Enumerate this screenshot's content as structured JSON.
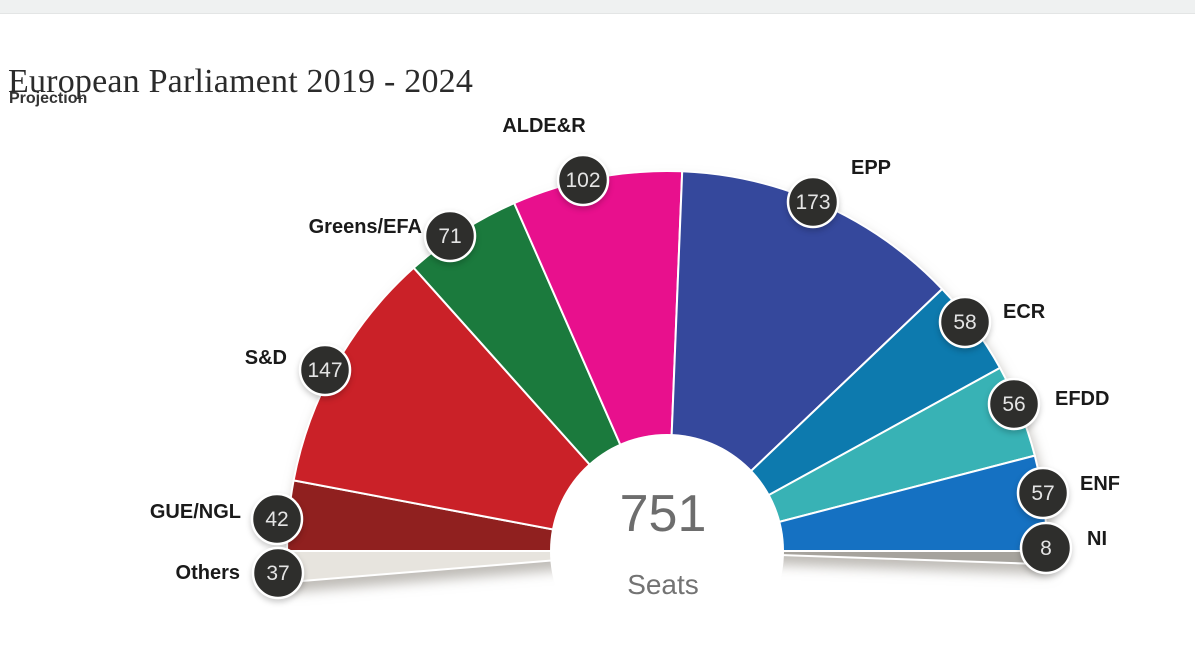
{
  "header": {
    "title": "European Parliament 2019 - 2024",
    "subtitle": "Projection"
  },
  "chart_data": {
    "type": "pie",
    "variant": "hemicycle-half-donut",
    "title": "European Parliament 2019 - 2024",
    "subtitle": "Projection",
    "total_seats": 751,
    "center": {
      "value": "751",
      "caption": "Seats"
    },
    "legend_position": "labels-around-arc",
    "order_left_to_right": [
      "Others",
      "GUE/NGL",
      "S&D",
      "Greens/EFA",
      "ALDE&R",
      "EPP",
      "ECR",
      "EFDD",
      "ENF",
      "NI"
    ],
    "groups": [
      {
        "label": "Others",
        "seats": 37,
        "color": "#e7e4de"
      },
      {
        "label": "GUE/NGL",
        "seats": 42,
        "color": "#90201f"
      },
      {
        "label": "S&D",
        "seats": 147,
        "color": "#ca2128"
      },
      {
        "label": "Greens/EFA",
        "seats": 71,
        "color": "#1b7a3d"
      },
      {
        "label": "ALDE&R",
        "seats": 102,
        "color": "#e8108d"
      },
      {
        "label": "EPP",
        "seats": 173,
        "color": "#35489c"
      },
      {
        "label": "ECR",
        "seats": 58,
        "color": "#0d7aae"
      },
      {
        "label": "EFDD",
        "seats": 56,
        "color": "#38b2b5"
      },
      {
        "label": "ENF",
        "seats": 57,
        "color": "#1571c2"
      },
      {
        "label": "NI",
        "seats": 8,
        "color": "#a6a39d"
      }
    ],
    "badge_style": {
      "background": "#2e2e2c",
      "ring": "#ffffff",
      "text": "#e4e4e4"
    }
  }
}
